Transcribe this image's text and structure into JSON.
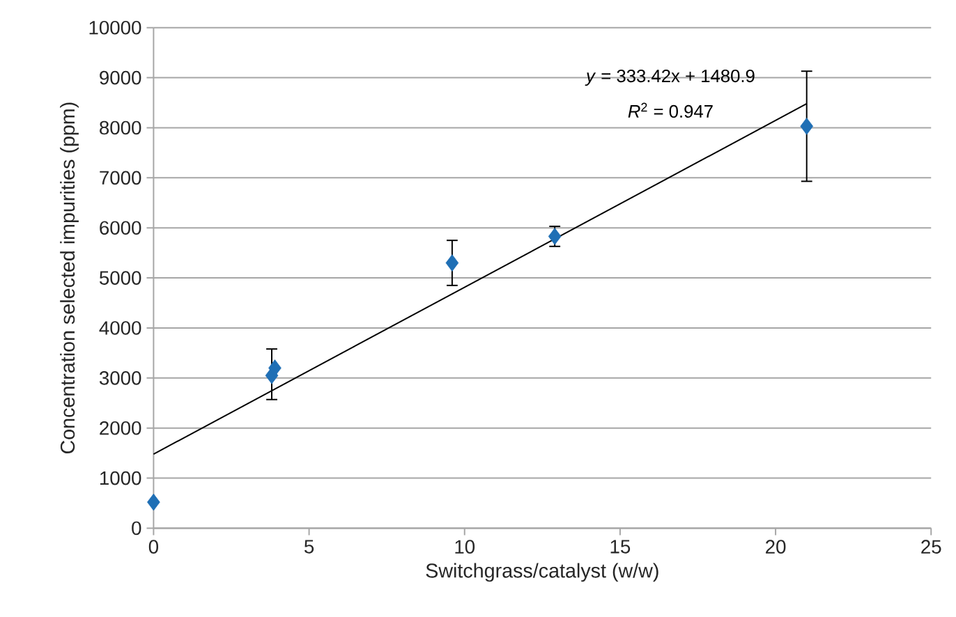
{
  "chart_data": {
    "type": "scatter",
    "xlabel": "Switchgrass/catalyst (w/w)",
    "ylabel": "Concentration selected impurities (ppm)",
    "series": [
      {
        "color": "#1f6fb5",
        "marker": "diamond",
        "x": [
          0,
          3.8,
          3.9,
          9.6,
          12.9,
          21
        ],
        "values": [
          520,
          3050,
          3200,
          5300,
          5830,
          8030
        ],
        "errors": [
          null,
          [
            2570,
            3580
          ],
          null,
          450,
          200,
          1100
        ]
      },
      {
        "type": "line",
        "color": "#000000",
        "x": [
          0,
          21
        ],
        "values": [
          1480,
          8480
        ]
      }
    ],
    "annotations": [
      "*y* = 333.42x + 1480.9",
      "*R*$^{2}$ = 0.947"
    ],
    "xlim": [
      0,
      25
    ],
    "xticks": [
      0,
      5,
      10,
      15,
      20,
      25
    ],
    "ylim": [
      0,
      10000
    ],
    "yticks": [
      0,
      1000,
      2000,
      3000,
      4000,
      5000,
      6000,
      7000,
      8000,
      9000,
      10000
    ],
    "grid": "y"
  }
}
